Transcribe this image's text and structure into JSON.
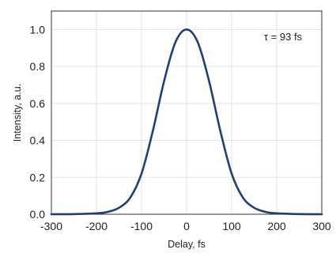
{
  "chart_data": {
    "type": "line",
    "xlabel": "Delay, fs",
    "ylabel": "Intensity, a.u.",
    "annotation": "τ = 93 fs",
    "xlim": [
      -300,
      300
    ],
    "ylim": [
      0,
      1.1
    ],
    "x_ticks": [
      "-300",
      "-200",
      "-100",
      "0",
      "100",
      "200",
      "300"
    ],
    "y_ticks": [
      "0.0",
      "0.2",
      "0.4",
      "0.6",
      "0.8",
      "1.0"
    ],
    "grid": true,
    "series": [
      {
        "color": "#1f3f78",
        "x": [
          -300,
          -250,
          -200,
          -175,
          -150,
          -125,
          -100,
          -75,
          -50,
          -25,
          0,
          25,
          50,
          75,
          100,
          125,
          150,
          175,
          200,
          250,
          300
        ],
        "y": [
          0.0,
          0.001,
          0.005,
          0.013,
          0.035,
          0.09,
          0.22,
          0.45,
          0.72,
          0.93,
          1.0,
          0.93,
          0.72,
          0.45,
          0.22,
          0.09,
          0.035,
          0.013,
          0.005,
          0.001,
          0.0
        ]
      }
    ]
  }
}
